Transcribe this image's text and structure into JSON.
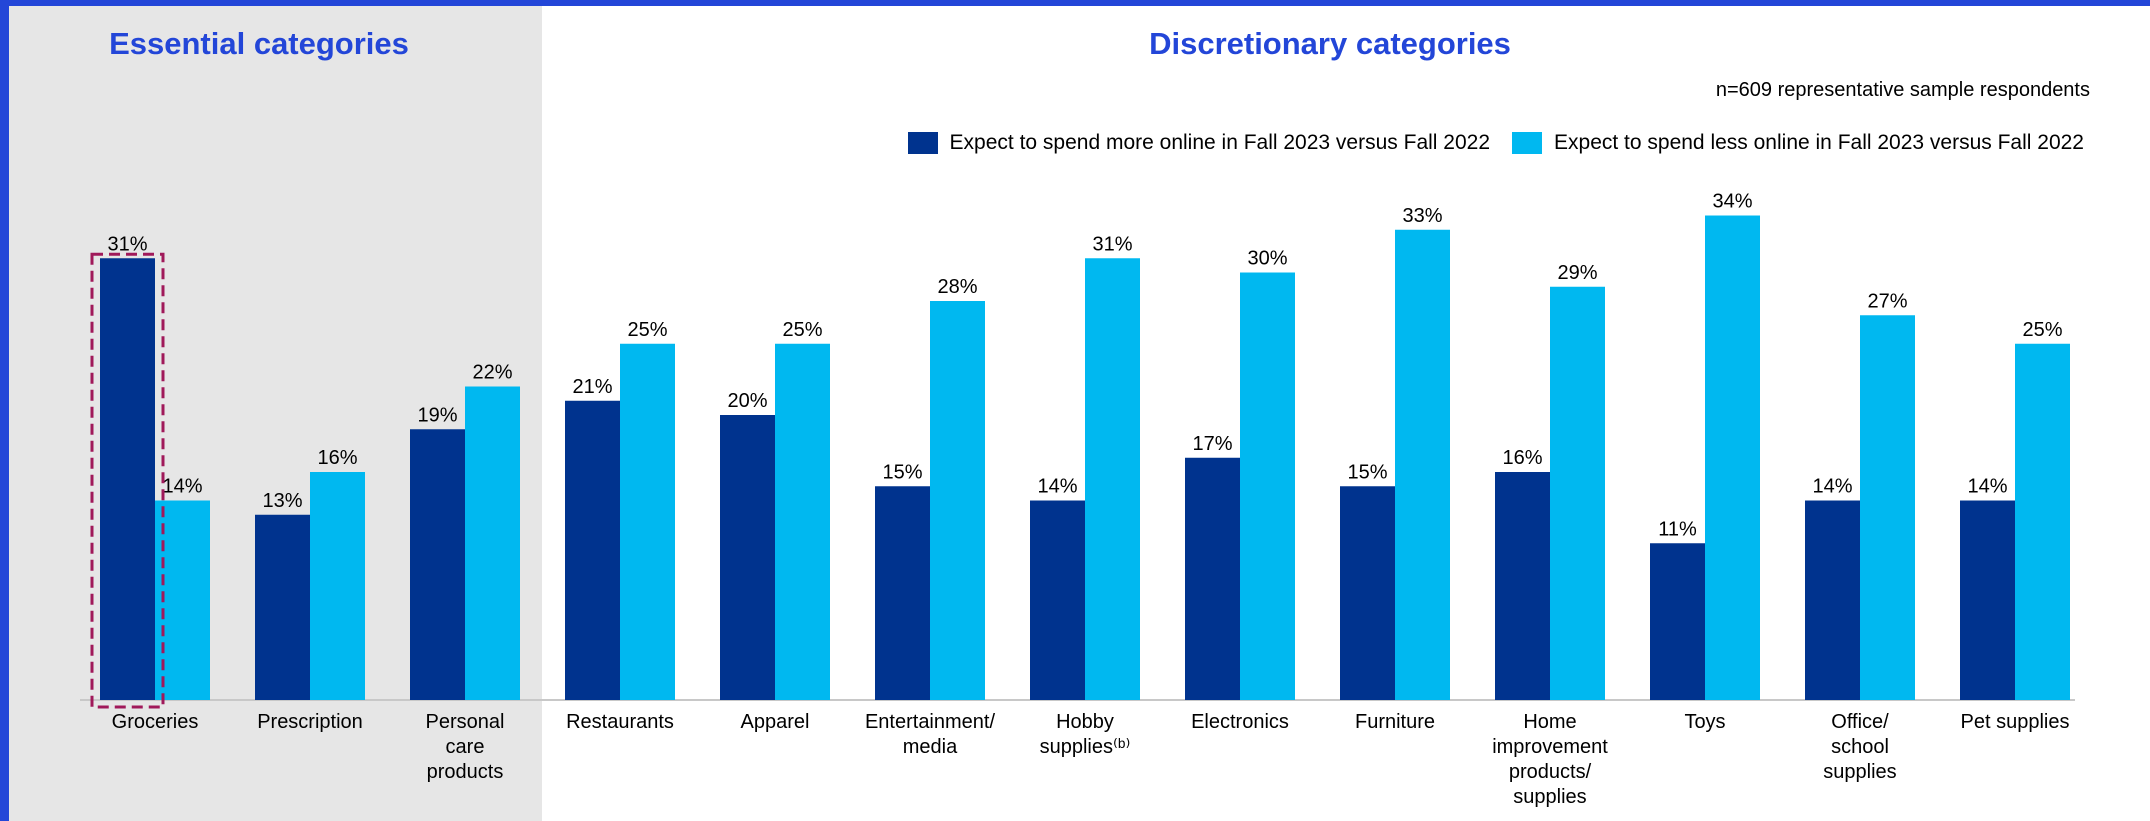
{
  "section_titles": {
    "essential": "Essential categories",
    "discretionary": "Discretionary categories"
  },
  "sample_note": "n=609 representative sample respondents",
  "colors": {
    "more": "#00338e",
    "less": "#00b8f0",
    "highlight": "#a0195a",
    "accent": "#2346d8",
    "essential_bg": "#e6e6e6"
  },
  "chart_data": {
    "type": "bar",
    "categories": [
      [
        "Groceries"
      ],
      [
        "Prescription"
      ],
      [
        "Personal",
        "care",
        "products"
      ],
      [
        "Restaurants"
      ],
      [
        "Apparel"
      ],
      [
        "Entertainment/",
        "media"
      ],
      [
        "Hobby",
        "supplies⁽ᵇ⁾"
      ],
      [
        "Electronics"
      ],
      [
        "Furniture"
      ],
      [
        "Home",
        "improvement",
        "products/",
        "supplies"
      ],
      [
        "Toys"
      ],
      [
        "Office/",
        "school",
        "supplies"
      ],
      [
        "Pet supplies"
      ]
    ],
    "series": [
      {
        "name": "Expect to spend more online in Fall 2023 versus Fall 2022",
        "values": [
          31,
          13,
          19,
          21,
          20,
          15,
          14,
          17,
          15,
          16,
          11,
          14,
          14
        ]
      },
      {
        "name": "Expect to spend less online in Fall 2023 versus Fall 2022",
        "values": [
          14,
          16,
          22,
          25,
          25,
          28,
          31,
          30,
          33,
          29,
          34,
          27,
          25
        ]
      }
    ],
    "value_suffix": "%",
    "highlighted_category": "Groceries",
    "legend_position": "top-right",
    "grid": false
  }
}
